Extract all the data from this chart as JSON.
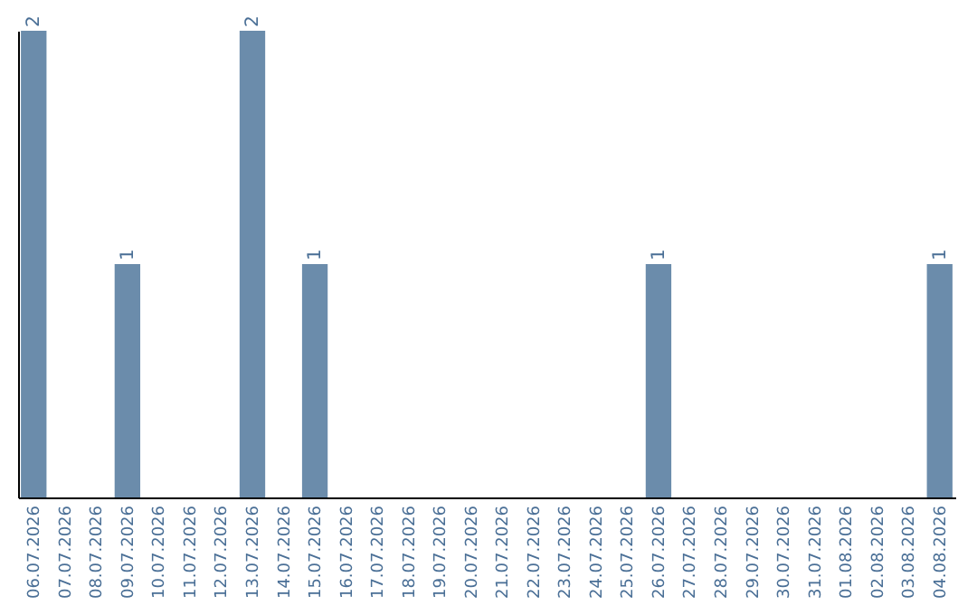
{
  "chart_data": {
    "type": "bar",
    "categories": [
      "06.07.2026",
      "07.07.2026",
      "08.07.2026",
      "09.07.2026",
      "10.07.2026",
      "11.07.2026",
      "12.07.2026",
      "13.07.2026",
      "14.07.2026",
      "15.07.2026",
      "16.07.2026",
      "17.07.2026",
      "18.07.2026",
      "19.07.2026",
      "20.07.2026",
      "21.07.2026",
      "22.07.2026",
      "23.07.2026",
      "24.07.2026",
      "25.07.2026",
      "26.07.2026",
      "27.07.2026",
      "28.07.2026",
      "29.07.2026",
      "30.07.2026",
      "31.07.2026",
      "01.08.2026",
      "02.08.2026",
      "03.08.2026",
      "04.08.2026"
    ],
    "values": [
      2,
      0,
      0,
      1,
      0,
      0,
      0,
      2,
      0,
      1,
      0,
      0,
      0,
      0,
      0,
      0,
      0,
      0,
      0,
      0,
      1,
      0,
      0,
      0,
      0,
      0,
      0,
      0,
      0,
      1
    ],
    "value_labels": [
      "2",
      null,
      null,
      "1",
      null,
      null,
      null,
      "2",
      null,
      "1",
      null,
      null,
      null,
      null,
      null,
      null,
      null,
      null,
      null,
      null,
      "1",
      null,
      null,
      null,
      null,
      null,
      null,
      null,
      null,
      "1"
    ],
    "color": "#6b8cab",
    "ylim": [
      0,
      2
    ],
    "tick_labels": "x",
    "grid": false
  }
}
